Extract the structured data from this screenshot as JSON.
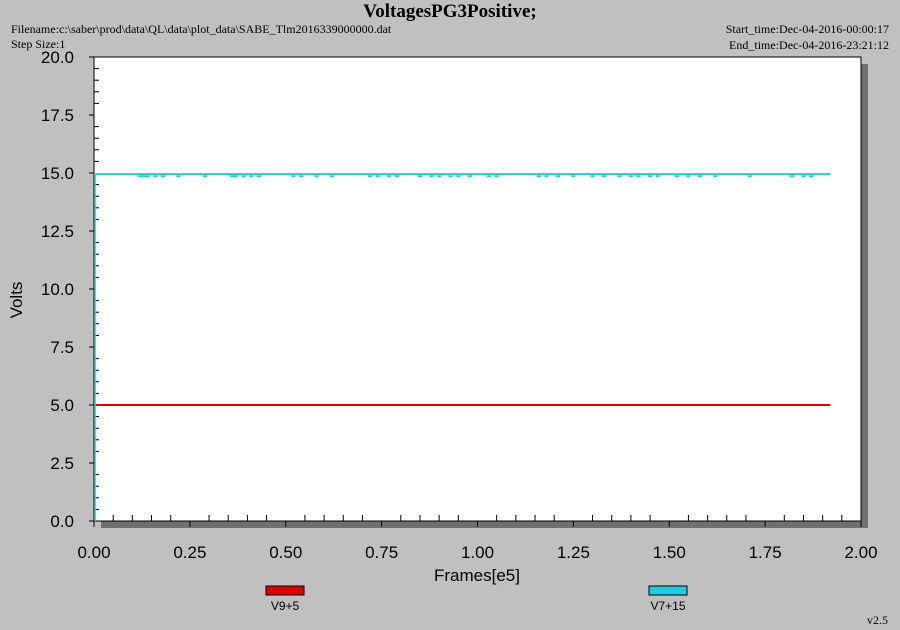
{
  "header": {
    "title": "VoltagesPG3Positive;",
    "filename": "Filename:c:\\saber\\prod\\data\\QL\\data\\plot_data\\SABE_Tlm2016339000000.dat",
    "step_size": "Step Size:1",
    "start_time": "Start_time:Dec-04-2016-00:00:17",
    "end_time": "End_time:Dec-04-2016-23:21:12"
  },
  "version": "v2.5",
  "colors": {
    "background": "#c0c0c0",
    "plot_area": "#ffffff",
    "shadow": "#707070"
  },
  "chart_data": {
    "type": "line",
    "title": "VoltagesPG3Positive;",
    "xlabel": "Frames[e5]",
    "ylabel": "Volts",
    "xlim": [
      0,
      2.0
    ],
    "ylim": [
      0,
      20.0
    ],
    "x_ticks": [
      "0.00",
      "0.25",
      "0.50",
      "0.75",
      "1.00",
      "1.25",
      "1.50",
      "1.75",
      "2.00"
    ],
    "y_ticks": [
      "0.0",
      "2.5",
      "5.0",
      "7.5",
      "10.0",
      "12.5",
      "15.0",
      "17.5",
      "20.0"
    ],
    "grid": false,
    "legend_position": "bottom",
    "series": [
      {
        "name": "V9+5",
        "color": "#dd0000",
        "x": [
          0.0,
          1.92
        ],
        "y": [
          5.0,
          5.0
        ]
      },
      {
        "name": "V7+15",
        "color": "#22ccdd",
        "x": [
          0.0,
          1.92
        ],
        "y": [
          14.95,
          14.95
        ],
        "dropouts": [
          0.12,
          0.13,
          0.14,
          0.16,
          0.18,
          0.22,
          0.29,
          0.36,
          0.37,
          0.39,
          0.41,
          0.43,
          0.52,
          0.54,
          0.58,
          0.62,
          0.72,
          0.74,
          0.77,
          0.79,
          0.85,
          0.88,
          0.9,
          0.93,
          0.95,
          0.98,
          1.03,
          1.05,
          1.16,
          1.18,
          1.21,
          1.25,
          1.3,
          1.33,
          1.37,
          1.4,
          1.42,
          1.45,
          1.47,
          1.52,
          1.55,
          1.58,
          1.62,
          1.71,
          1.82,
          1.85,
          1.87
        ],
        "dropout_value": 14.86
      }
    ]
  }
}
